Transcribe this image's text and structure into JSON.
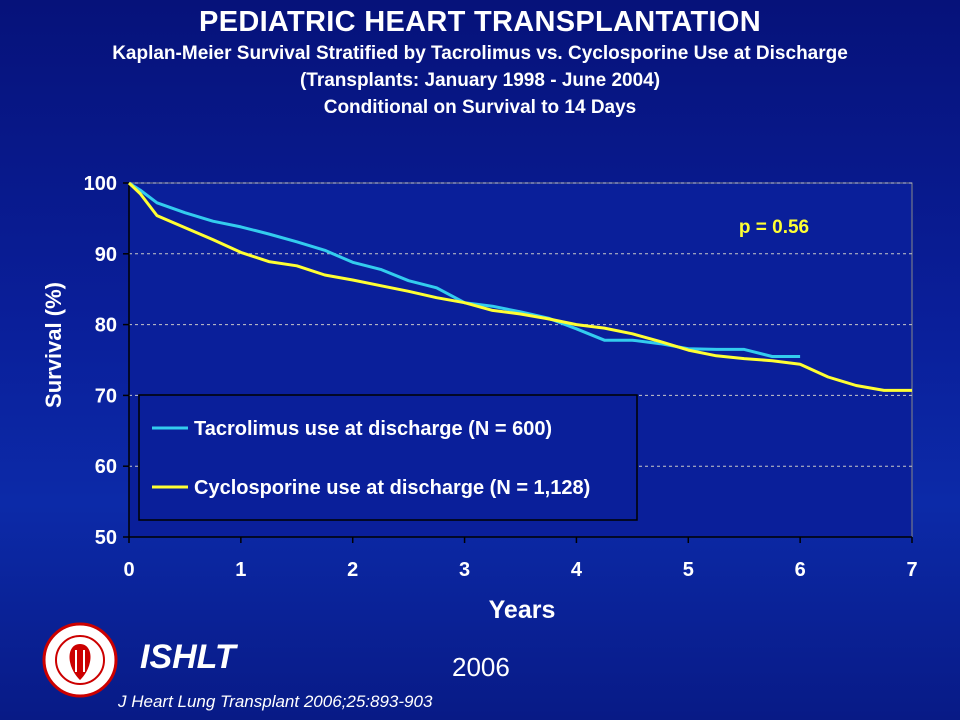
{
  "title": "PEDIATRIC HEART TRANSPLANTATION",
  "subtitle_lines": [
    "Kaplan-Meier Survival Stratified by Tacrolimus vs. Cyclosporine Use at Discharge",
    "(Transplants: January 1998 - June 2004)",
    "Conditional on Survival to 14 Days"
  ],
  "organization": "ISHLT",
  "year": "2006",
  "citation": "J Heart Lung Transplant 2006;25:893-903",
  "logo": {
    "icon": "ishlt-logo-icon"
  },
  "colors": {
    "tacrolimus": "#33ccee",
    "cyclosporine": "#ffff33",
    "background": "#0a1f9a"
  },
  "chart_data": {
    "type": "line",
    "title": "",
    "xlabel": "Years",
    "ylabel": "Survival (%)",
    "xlim": [
      0,
      7
    ],
    "ylim": [
      50,
      100
    ],
    "x_ticks": [
      0,
      1,
      2,
      3,
      4,
      5,
      6,
      7
    ],
    "y_ticks": [
      50,
      60,
      70,
      80,
      90,
      100
    ],
    "grid": {
      "horizontal": true,
      "dashed": true
    },
    "legend_position": "lower-left",
    "annotation": "p = 0.56",
    "series": [
      {
        "name": "Tacrolimus use at discharge (N = 600)",
        "color": "#33ccee",
        "points": [
          [
            0,
            100
          ],
          [
            0.1,
            99
          ],
          [
            0.25,
            97.2
          ],
          [
            0.5,
            95.8
          ],
          [
            0.75,
            94.6
          ],
          [
            1.0,
            93.8
          ],
          [
            1.25,
            92.8
          ],
          [
            1.5,
            91.7
          ],
          [
            1.75,
            90.5
          ],
          [
            2.0,
            88.8
          ],
          [
            2.25,
            87.8
          ],
          [
            2.5,
            86.2
          ],
          [
            2.75,
            85.2
          ],
          [
            3.0,
            83.1
          ],
          [
            3.25,
            82.6
          ],
          [
            3.5,
            81.8
          ],
          [
            3.75,
            80.9
          ],
          [
            4.0,
            79.4
          ],
          [
            4.25,
            77.8
          ],
          [
            4.5,
            77.8
          ],
          [
            4.75,
            77.3
          ],
          [
            5.0,
            76.6
          ],
          [
            5.25,
            76.5
          ],
          [
            5.5,
            76.5
          ],
          [
            5.75,
            75.5
          ],
          [
            6.0,
            75.5
          ]
        ]
      },
      {
        "name": "Cyclosporine use at discharge (N = 1,128)",
        "color": "#ffff33",
        "points": [
          [
            0,
            100
          ],
          [
            0.1,
            98.5
          ],
          [
            0.25,
            95.4
          ],
          [
            0.5,
            93.7
          ],
          [
            0.75,
            92.0
          ],
          [
            1.0,
            90.2
          ],
          [
            1.25,
            88.9
          ],
          [
            1.5,
            88.3
          ],
          [
            1.75,
            87.0
          ],
          [
            2.0,
            86.3
          ],
          [
            2.25,
            85.5
          ],
          [
            2.5,
            84.7
          ],
          [
            2.75,
            83.8
          ],
          [
            3.0,
            83.1
          ],
          [
            3.25,
            82.0
          ],
          [
            3.5,
            81.5
          ],
          [
            3.75,
            80.8
          ],
          [
            4.0,
            80.0
          ],
          [
            4.25,
            79.5
          ],
          [
            4.5,
            78.7
          ],
          [
            4.75,
            77.6
          ],
          [
            5.0,
            76.4
          ],
          [
            5.25,
            75.6
          ],
          [
            5.5,
            75.2
          ],
          [
            5.75,
            74.9
          ],
          [
            6.0,
            74.4
          ],
          [
            6.25,
            72.6
          ],
          [
            6.5,
            71.4
          ],
          [
            6.75,
            70.7
          ],
          [
            7.0,
            70.7
          ]
        ]
      }
    ]
  }
}
